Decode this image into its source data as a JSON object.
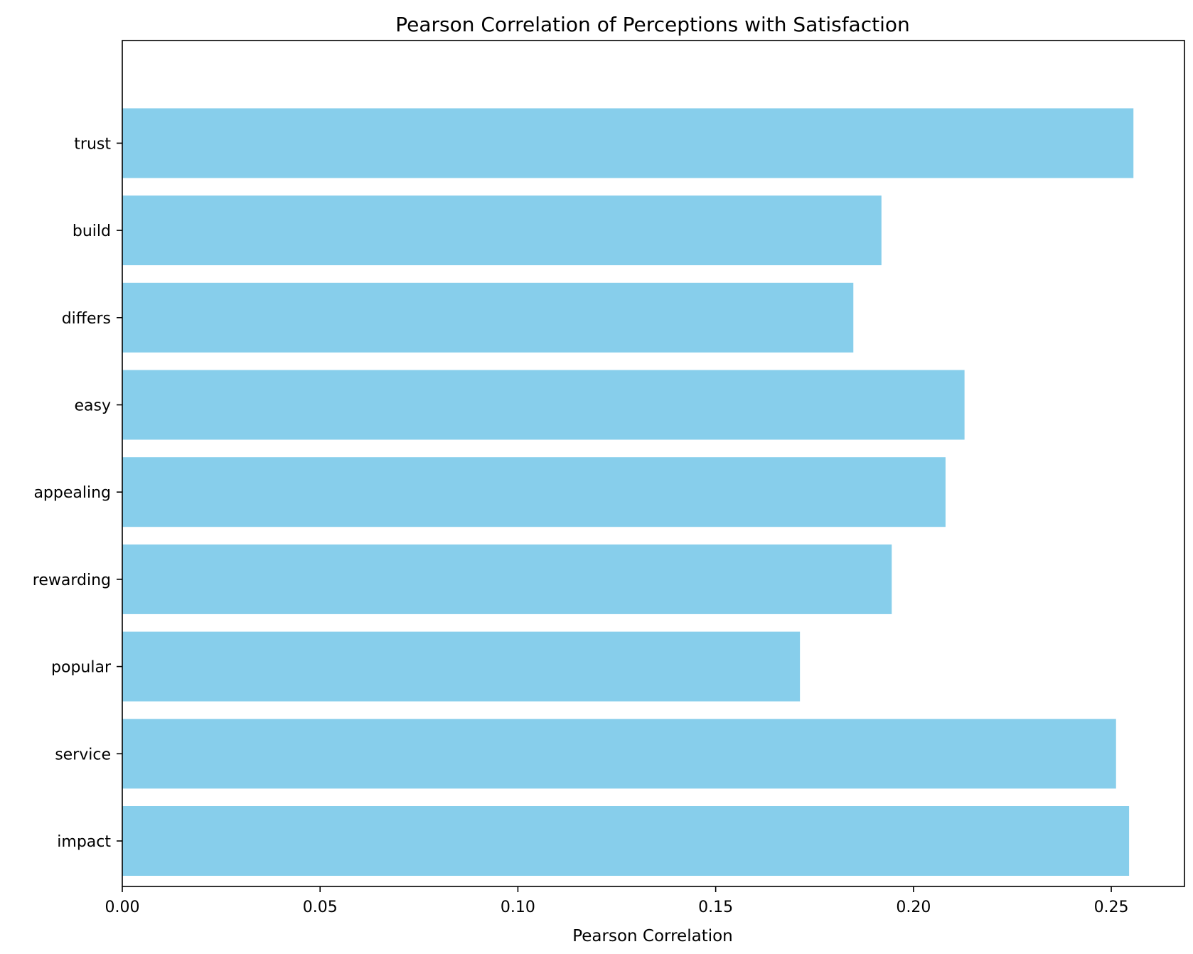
{
  "chart_data": {
    "type": "bar",
    "orientation": "horizontal",
    "title": "Pearson Correlation of Perceptions with Satisfaction",
    "xlabel": "Pearson Correlation",
    "ylabel": "",
    "categories": [
      "impact",
      "service",
      "popular",
      "rewarding",
      "appealing",
      "easy",
      "differs",
      "build",
      "trust"
    ],
    "values": [
      0.2545,
      0.2512,
      0.1713,
      0.1945,
      0.2081,
      0.2129,
      0.1848,
      0.1919,
      0.2556
    ],
    "xlim": [
      0,
      0.2685
    ],
    "xticks": [
      0.0,
      0.05,
      0.1,
      0.15,
      0.2,
      0.25
    ],
    "xtick_labels": [
      "0.00",
      "0.05",
      "0.10",
      "0.15",
      "0.20",
      "0.25"
    ],
    "bar_color": "#87ceeb",
    "grid": false,
    "legend": "none"
  }
}
